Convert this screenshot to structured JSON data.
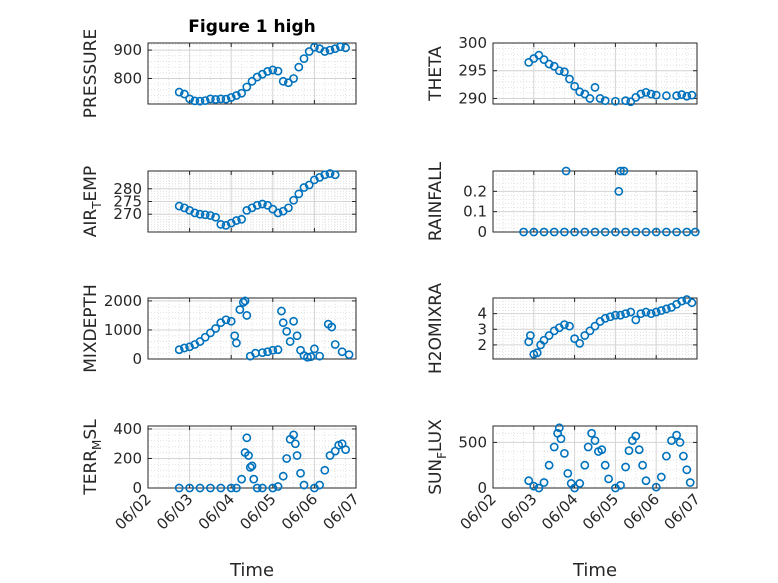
{
  "figure": {
    "title": "Figure 1 high"
  },
  "chart_data": [
    {
      "type": "scatter",
      "ylabel": "PRESSURE",
      "title": "Figure 1 high",
      "xlabel": "",
      "xlim": [
        "06/02",
        "06/07"
      ],
      "ylim": [
        710,
        925
      ],
      "yticks": [
        800,
        900
      ],
      "grid": true,
      "color": "#0072BD",
      "points": [
        [
          "06/02 18:00",
          752
        ],
        [
          "06/02 21:00",
          745
        ],
        [
          "06/03 00:00",
          728
        ],
        [
          "06/03 03:00",
          721
        ],
        [
          "06/03 06:00",
          720
        ],
        [
          "06/03 09:00",
          722
        ],
        [
          "06/03 12:00",
          728
        ],
        [
          "06/03 15:00",
          726
        ],
        [
          "06/03 18:00",
          728
        ],
        [
          "06/03 21:00",
          727
        ],
        [
          "06/04 00:00",
          733
        ],
        [
          "06/04 03:00",
          740
        ],
        [
          "06/04 06:00",
          748
        ],
        [
          "06/04 09:00",
          770
        ],
        [
          "06/04 12:00",
          790
        ],
        [
          "06/04 15:00",
          805
        ],
        [
          "06/04 18:00",
          815
        ],
        [
          "06/04 21:00",
          825
        ],
        [
          "06/05 00:00",
          830
        ],
        [
          "06/05 03:00",
          826
        ],
        [
          "06/05 06:00",
          790
        ],
        [
          "06/05 09:00",
          785
        ],
        [
          "06/05 12:00",
          800
        ],
        [
          "06/05 15:00",
          840
        ],
        [
          "06/05 18:00",
          870
        ],
        [
          "06/05 21:00",
          895
        ],
        [
          "06/06 00:00",
          910
        ],
        [
          "06/06 03:00",
          905
        ],
        [
          "06/06 06:00",
          895
        ],
        [
          "06/06 09:00",
          900
        ],
        [
          "06/06 12:00",
          905
        ],
        [
          "06/06 15:00",
          912
        ],
        [
          "06/06 18:00",
          908
        ]
      ]
    },
    {
      "type": "scatter",
      "ylabel": "THETA",
      "xlabel": "",
      "xlim": [
        "06/02",
        "06/07"
      ],
      "ylim": [
        289,
        300
      ],
      "yticks": [
        290,
        295,
        300
      ],
      "grid": true,
      "color": "#0072BD",
      "points": [
        [
          "06/02 21:00",
          296.5
        ],
        [
          "06/03 00:00",
          297.2
        ],
        [
          "06/03 03:00",
          297.8
        ],
        [
          "06/03 06:00",
          297.0
        ],
        [
          "06/03 09:00",
          296.2
        ],
        [
          "06/03 12:00",
          295.8
        ],
        [
          "06/03 15:00",
          295.0
        ],
        [
          "06/03 18:00",
          294.8
        ],
        [
          "06/03 21:00",
          293.5
        ],
        [
          "06/04 00:00",
          292.2
        ],
        [
          "06/04 03:00",
          291.2
        ],
        [
          "06/04 06:00",
          290.8
        ],
        [
          "06/04 09:00",
          290.0
        ],
        [
          "06/04 12:00",
          292.0
        ],
        [
          "06/04 15:00",
          290.0
        ],
        [
          "06/04 18:00",
          289.6
        ],
        [
          "06/05 00:00",
          289.5
        ],
        [
          "06/05 06:00",
          289.6
        ],
        [
          "06/05 09:00",
          289.4
        ],
        [
          "06/05 12:00",
          290.2
        ],
        [
          "06/05 15:00",
          290.8
        ],
        [
          "06/05 18:00",
          291.1
        ],
        [
          "06/05 21:00",
          290.8
        ],
        [
          "06/06 00:00",
          290.6
        ],
        [
          "06/06 06:00",
          290.5
        ],
        [
          "06/06 12:00",
          290.5
        ],
        [
          "06/06 15:00",
          290.7
        ],
        [
          "06/06 18:00",
          290.4
        ],
        [
          "06/06 21:00",
          290.6
        ]
      ]
    },
    {
      "type": "scatter",
      "ylabel": "AIR_TEMP",
      "xlabel": "",
      "xlim": [
        "06/02",
        "06/07"
      ],
      "ylim": [
        263,
        287
      ],
      "yticks": [
        270,
        275,
        280
      ],
      "grid": true,
      "color": "#0072BD",
      "points": [
        [
          "06/02 18:00",
          273.2
        ],
        [
          "06/02 21:00",
          272.5
        ],
        [
          "06/03 00:00",
          271.5
        ],
        [
          "06/03 03:00",
          270.5
        ],
        [
          "06/03 06:00",
          270.0
        ],
        [
          "06/03 09:00",
          269.8
        ],
        [
          "06/03 12:00",
          269.5
        ],
        [
          "06/03 15:00",
          268.8
        ],
        [
          "06/03 18:00",
          266.0
        ],
        [
          "06/03 21:00",
          265.6
        ],
        [
          "06/04 00:00",
          266.5
        ],
        [
          "06/04 03:00",
          267.5
        ],
        [
          "06/04 06:00",
          268.0
        ],
        [
          "06/04 09:00",
          271.5
        ],
        [
          "06/04 12:00",
          272.5
        ],
        [
          "06/04 15:00",
          273.5
        ],
        [
          "06/04 18:00",
          274.0
        ],
        [
          "06/04 21:00",
          273.5
        ],
        [
          "06/05 00:00",
          272.0
        ],
        [
          "06/05 03:00",
          270.5
        ],
        [
          "06/05 06:00",
          271.2
        ],
        [
          "06/05 09:00",
          272.5
        ],
        [
          "06/05 12:00",
          275.5
        ],
        [
          "06/05 15:00",
          278.0
        ],
        [
          "06/05 18:00",
          280.5
        ],
        [
          "06/05 21:00",
          281.5
        ],
        [
          "06/06 00:00",
          283.5
        ],
        [
          "06/06 03:00",
          284.5
        ],
        [
          "06/06 06:00",
          285.5
        ],
        [
          "06/06 09:00",
          286.0
        ],
        [
          "06/06 12:00",
          285.5
        ]
      ]
    },
    {
      "type": "scatter",
      "ylabel": "RAINFALL",
      "xlabel": "",
      "xlim": [
        "06/02",
        "06/07"
      ],
      "ylim": [
        0,
        0.3
      ],
      "yticks": [
        0,
        0.1,
        0.2
      ],
      "grid": true,
      "color": "#0072BD",
      "points": [
        [
          "06/02 18:00",
          0
        ],
        [
          "06/03 00:00",
          0
        ],
        [
          "06/03 06:00",
          0
        ],
        [
          "06/03 12:00",
          0
        ],
        [
          "06/03 18:00",
          0
        ],
        [
          "06/03 19:00",
          0.3
        ],
        [
          "06/04 00:00",
          0
        ],
        [
          "06/04 06:00",
          0
        ],
        [
          "06/04 12:00",
          0
        ],
        [
          "06/04 18:00",
          0
        ],
        [
          "06/05 00:00",
          0
        ],
        [
          "06/05 02:00",
          0.2
        ],
        [
          "06/05 03:00",
          0.3
        ],
        [
          "06/05 05:00",
          0.3
        ],
        [
          "06/05 06:00",
          0
        ],
        [
          "06/05 12:00",
          0
        ],
        [
          "06/05 18:00",
          0
        ],
        [
          "06/06 00:00",
          0
        ],
        [
          "06/06 06:00",
          0
        ],
        [
          "06/06 12:00",
          0
        ],
        [
          "06/06 18:00",
          0
        ],
        [
          "06/06 23:00",
          0
        ]
      ]
    },
    {
      "type": "scatter",
      "ylabel": "MIXDEPTH",
      "xlabel": "",
      "xlim": [
        "06/02",
        "06/07"
      ],
      "ylim": [
        0,
        2100
      ],
      "yticks": [
        0,
        1000,
        2000
      ],
      "grid": true,
      "color": "#0072BD",
      "points": [
        [
          "06/02 18:00",
          320
        ],
        [
          "06/02 21:00",
          380
        ],
        [
          "06/03 00:00",
          420
        ],
        [
          "06/03 03:00",
          500
        ],
        [
          "06/03 06:00",
          600
        ],
        [
          "06/03 09:00",
          750
        ],
        [
          "06/03 12:00",
          900
        ],
        [
          "06/03 15:00",
          1050
        ],
        [
          "06/03 18:00",
          1250
        ],
        [
          "06/03 21:00",
          1350
        ],
        [
          "06/04 00:00",
          1300
        ],
        [
          "06/04 02:00",
          800
        ],
        [
          "06/04 03:00",
          550
        ],
        [
          "06/04 05:00",
          1700
        ],
        [
          "06/04 07:00",
          1950
        ],
        [
          "06/04 08:00",
          2000
        ],
        [
          "06/04 09:00",
          1500
        ],
        [
          "06/04 11:00",
          100
        ],
        [
          "06/04 14:00",
          200
        ],
        [
          "06/04 18:00",
          220
        ],
        [
          "06/04 21:00",
          250
        ],
        [
          "06/05 00:00",
          300
        ],
        [
          "06/05 03:00",
          320
        ],
        [
          "06/05 05:00",
          1650
        ],
        [
          "06/05 06:00",
          1250
        ],
        [
          "06/05 08:00",
          950
        ],
        [
          "06/05 10:00",
          600
        ],
        [
          "06/05 12:00",
          1300
        ],
        [
          "06/05 14:00",
          800
        ],
        [
          "06/05 16:00",
          300
        ],
        [
          "06/05 18:00",
          120
        ],
        [
          "06/05 20:00",
          60
        ],
        [
          "06/05 22:00",
          80
        ],
        [
          "06/06 00:00",
          350
        ],
        [
          "06/06 03:00",
          100
        ],
        [
          "06/06 08:00",
          1200
        ],
        [
          "06/06 10:00",
          1100
        ],
        [
          "06/06 12:00",
          500
        ],
        [
          "06/06 16:00",
          250
        ],
        [
          "06/06 20:00",
          150
        ]
      ]
    },
    {
      "type": "scatter",
      "ylabel": "H2OMIXRA",
      "xlabel": "",
      "xlim": [
        "06/02",
        "06/07"
      ],
      "ylim": [
        1.1,
        5.0
      ],
      "yticks": [
        2,
        3,
        4
      ],
      "grid": true,
      "color": "#0072BD",
      "points": [
        [
          "06/02 21:00",
          2.2
        ],
        [
          "06/02 22:00",
          2.6
        ],
        [
          "06/03 00:00",
          1.4
        ],
        [
          "06/03 02:00",
          1.5
        ],
        [
          "06/03 04:00",
          2.0
        ],
        [
          "06/03 06:00",
          2.3
        ],
        [
          "06/03 09:00",
          2.6
        ],
        [
          "06/03 12:00",
          2.9
        ],
        [
          "06/03 15:00",
          3.1
        ],
        [
          "06/03 18:00",
          3.3
        ],
        [
          "06/03 21:00",
          3.2
        ],
        [
          "06/04 00:00",
          2.4
        ],
        [
          "06/04 03:00",
          2.1
        ],
        [
          "06/04 06:00",
          2.6
        ],
        [
          "06/04 09:00",
          2.9
        ],
        [
          "06/04 12:00",
          3.2
        ],
        [
          "06/04 15:00",
          3.5
        ],
        [
          "06/04 18:00",
          3.7
        ],
        [
          "06/04 21:00",
          3.8
        ],
        [
          "06/05 00:00",
          3.9
        ],
        [
          "06/05 03:00",
          3.9
        ],
        [
          "06/05 06:00",
          4.0
        ],
        [
          "06/05 09:00",
          4.1
        ],
        [
          "06/05 12:00",
          3.6
        ],
        [
          "06/05 15:00",
          4.0
        ],
        [
          "06/05 18:00",
          4.1
        ],
        [
          "06/05 21:00",
          4.0
        ],
        [
          "06/06 00:00",
          4.1
        ],
        [
          "06/06 03:00",
          4.2
        ],
        [
          "06/06 06:00",
          4.3
        ],
        [
          "06/06 09:00",
          4.4
        ],
        [
          "06/06 12:00",
          4.6
        ],
        [
          "06/06 15:00",
          4.8
        ],
        [
          "06/06 18:00",
          4.9
        ],
        [
          "06/06 21:00",
          4.7
        ]
      ]
    },
    {
      "type": "scatter",
      "ylabel": "TERR_MSL",
      "xlabel": "Time",
      "xlim": [
        "06/02",
        "06/07"
      ],
      "ylim": [
        0,
        420
      ],
      "yticks": [
        0,
        200,
        400
      ],
      "grid": true,
      "color": "#0072BD",
      "points": [
        [
          "06/02 18:00",
          0
        ],
        [
          "06/03 00:00",
          0
        ],
        [
          "06/03 06:00",
          0
        ],
        [
          "06/03 12:00",
          0
        ],
        [
          "06/03 18:00",
          0
        ],
        [
          "06/04 00:00",
          0
        ],
        [
          "06/04 03:00",
          0
        ],
        [
          "06/04 06:00",
          60
        ],
        [
          "06/04 08:00",
          240
        ],
        [
          "06/04 09:00",
          340
        ],
        [
          "06/04 10:00",
          220
        ],
        [
          "06/04 11:00",
          140
        ],
        [
          "06/04 12:00",
          150
        ],
        [
          "06/04 13:00",
          60
        ],
        [
          "06/04 15:00",
          0
        ],
        [
          "06/04 18:00",
          0
        ],
        [
          "06/05 00:00",
          0
        ],
        [
          "06/05 03:00",
          10
        ],
        [
          "06/05 06:00",
          80
        ],
        [
          "06/05 08:00",
          200
        ],
        [
          "06/05 10:00",
          330
        ],
        [
          "06/05 12:00",
          360
        ],
        [
          "06/05 13:00",
          300
        ],
        [
          "06/05 14:00",
          220
        ],
        [
          "06/05 16:00",
          100
        ],
        [
          "06/05 18:00",
          20
        ],
        [
          "06/06 00:00",
          0
        ],
        [
          "06/06 03:00",
          20
        ],
        [
          "06/06 06:00",
          120
        ],
        [
          "06/06 09:00",
          220
        ],
        [
          "06/06 12:00",
          250
        ],
        [
          "06/06 14:00",
          290
        ],
        [
          "06/06 16:00",
          300
        ],
        [
          "06/06 18:00",
          260
        ]
      ]
    },
    {
      "type": "scatter",
      "ylabel": "SUN_FLUX",
      "xlabel": "Time",
      "xlim": [
        "06/02",
        "06/07"
      ],
      "ylim": [
        0,
        680
      ],
      "yticks": [
        0,
        500
      ],
      "grid": true,
      "color": "#0072BD",
      "points": [
        [
          "06/02 21:00",
          80
        ],
        [
          "06/03 00:00",
          20
        ],
        [
          "06/03 03:00",
          0
        ],
        [
          "06/03 06:00",
          60
        ],
        [
          "06/03 09:00",
          250
        ],
        [
          "06/03 12:00",
          450
        ],
        [
          "06/03 14:00",
          600
        ],
        [
          "06/03 15:00",
          660
        ],
        [
          "06/03 16:00",
          540
        ],
        [
          "06/03 18:00",
          380
        ],
        [
          "06/03 20:00",
          160
        ],
        [
          "06/03 22:00",
          50
        ],
        [
          "06/04 00:00",
          0
        ],
        [
          "06/04 03:00",
          50
        ],
        [
          "06/04 06:00",
          250
        ],
        [
          "06/04 08:00",
          450
        ],
        [
          "06/04 10:00",
          600
        ],
        [
          "06/04 12:00",
          520
        ],
        [
          "06/04 14:00",
          400
        ],
        [
          "06/04 16:00",
          420
        ],
        [
          "06/04 18:00",
          250
        ],
        [
          "06/04 20:00",
          100
        ],
        [
          "06/05 00:00",
          0
        ],
        [
          "06/05 03:00",
          30
        ],
        [
          "06/05 06:00",
          230
        ],
        [
          "06/05 08:00",
          410
        ],
        [
          "06/05 10:00",
          520
        ],
        [
          "06/05 12:00",
          570
        ],
        [
          "06/05 14:00",
          420
        ],
        [
          "06/05 16:00",
          250
        ],
        [
          "06/05 18:00",
          80
        ],
        [
          "06/06 00:00",
          10
        ],
        [
          "06/06 03:00",
          120
        ],
        [
          "06/06 06:00",
          350
        ],
        [
          "06/06 09:00",
          520
        ],
        [
          "06/06 12:00",
          580
        ],
        [
          "06/06 14:00",
          500
        ],
        [
          "06/06 16:00",
          350
        ],
        [
          "06/06 18:00",
          200
        ],
        [
          "06/06 20:00",
          60
        ]
      ]
    }
  ],
  "x_ticks": [
    "06/02",
    "06/03",
    "06/04",
    "06/05",
    "06/06",
    "06/07"
  ]
}
